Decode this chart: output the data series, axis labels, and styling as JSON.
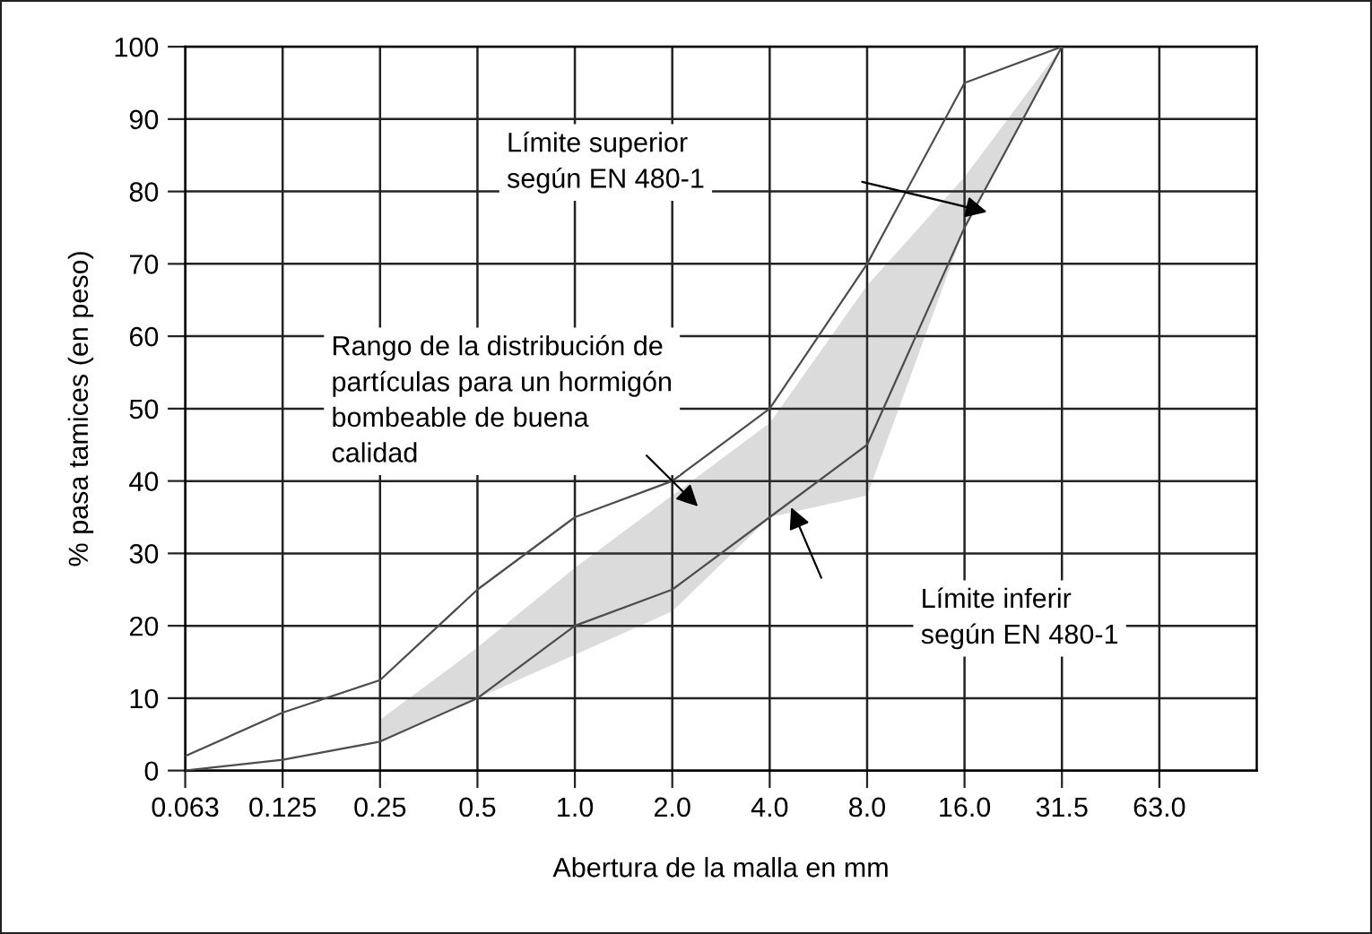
{
  "chart_data": {
    "type": "line",
    "xlabel": "Abertura de la malla en mm",
    "ylabel": "% pasa tamices (en peso)",
    "categories": [
      "0.063",
      "0.125",
      "0.25",
      "0.5",
      "1.0",
      "2.0",
      "4.0",
      "8.0",
      "16.0",
      "31.5",
      "63.0"
    ],
    "series": [
      {
        "color": "#4d4d4d",
        "values": [
          2,
          8,
          12.5,
          25,
          35,
          40,
          50,
          70,
          95,
          100,
          null
        ]
      },
      {
        "color": "#4d4d4d",
        "values": [
          0,
          1.5,
          4,
          10,
          20,
          25,
          35,
          45,
          75,
          100,
          null
        ],
        "lower": [
          null,
          null,
          4,
          10,
          16,
          22,
          35,
          38,
          75,
          100,
          null
        ],
        "upper": [
          null,
          null,
          7,
          17,
          28,
          38,
          48,
          67,
          82,
          100,
          null
        ]
      }
    ],
    "ylim": [
      0,
      100
    ],
    "yticks": [
      0,
      10,
      20,
      30,
      40,
      50,
      60,
      70,
      80,
      90,
      100
    ],
    "grid": true,
    "marker": "none",
    "line_style": "solid",
    "annotations": [
      "Límite superior\nsegún EN 480-1",
      "Rango de la distribución de\npartículas para un hormigón\nbombeable de buena\ncalidad",
      "Límite inferir\nsegún EN 480-1"
    ]
  }
}
